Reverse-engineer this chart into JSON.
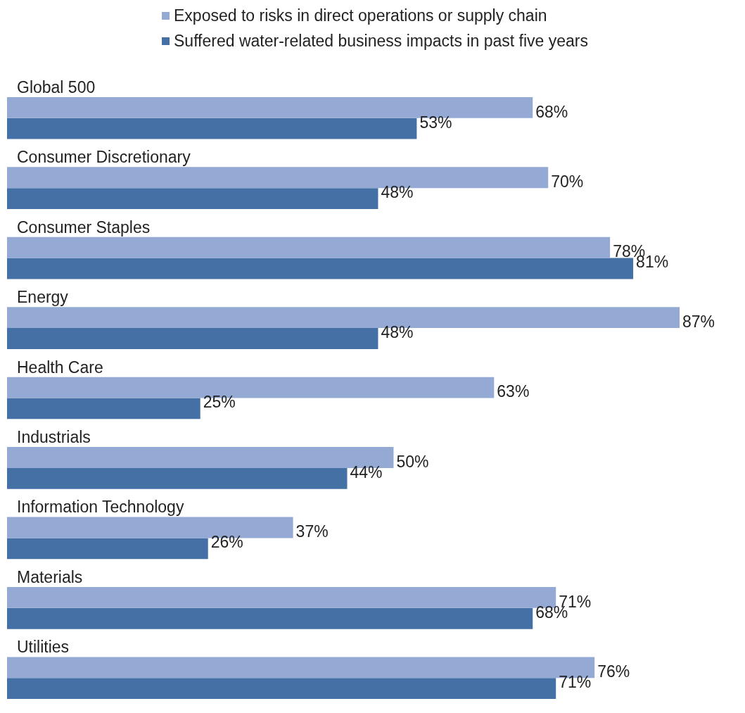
{
  "chart_data": {
    "type": "bar",
    "orientation": "horizontal",
    "legend": "top",
    "categories": [
      "Global 500",
      "Consumer Discretionary",
      "Consumer Staples",
      "Energy",
      "Health Care",
      "Industrials",
      "Information Technology",
      "Materials",
      "Utilities"
    ],
    "series": [
      {
        "name": "Exposed to risks in direct operations or supply chain",
        "color": "#94aad5",
        "values": [
          68,
          70,
          78,
          87,
          63,
          50,
          37,
          71,
          76
        ],
        "value_labels": [
          "68%",
          "70%",
          "78%",
          "87%",
          "63%",
          "50%",
          "37%",
          "71%",
          "76%"
        ]
      },
      {
        "name": "Suffered water-related business impacts in past five years",
        "color": "#4470a5",
        "values": [
          53,
          48,
          81,
          48,
          25,
          44,
          26,
          68,
          71
        ],
        "value_labels": [
          "53%",
          "48%",
          "81%",
          "48%",
          "25%",
          "44%",
          "26%",
          "68%",
          "71%"
        ]
      }
    ]
  }
}
